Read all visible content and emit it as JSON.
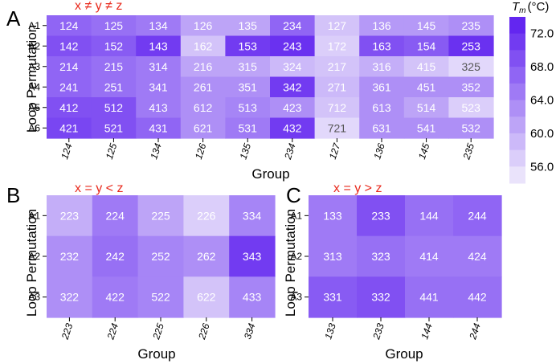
{
  "colorbar": {
    "title_symbol": "T",
    "title_subscript": "m",
    "title_unit": "(°C)",
    "ticks": [
      "72.0",
      "68.0",
      "64.0",
      "60.0",
      "56.0"
    ],
    "tick_values": [
      72,
      68,
      64,
      60,
      56
    ],
    "range": [
      54,
      74
    ],
    "dark_color": "#5b1cef",
    "light_color": "#f1edfc"
  },
  "chart_data": [
    {
      "panel": "A",
      "type": "heatmap",
      "title": "x ≠ y ≠ z",
      "xlabel": "Group",
      "ylabel": "Loop Permutation",
      "rows": [
        "A1",
        "A2",
        "A3",
        "A4",
        "A5",
        "A6"
      ],
      "columns": [
        "124",
        "125",
        "134",
        "126",
        "135",
        "234",
        "127",
        "136",
        "145",
        "235"
      ],
      "labels": [
        [
          "124",
          "125",
          "134",
          "126",
          "135",
          "234",
          "127",
          "136",
          "145",
          "235"
        ],
        [
          "142",
          "152",
          "143",
          "162",
          "153",
          "243",
          "172",
          "163",
          "154",
          "253"
        ],
        [
          "214",
          "215",
          "314",
          "216",
          "315",
          "324",
          "217",
          "316",
          "415",
          "325"
        ],
        [
          "241",
          "251",
          "341",
          "261",
          "351",
          "342",
          "271",
          "361",
          "451",
          "352"
        ],
        [
          "412",
          "512",
          "413",
          "612",
          "513",
          "423",
          "712",
          "613",
          "514",
          "523"
        ],
        [
          "421",
          "521",
          "431",
          "621",
          "531",
          "432",
          "721",
          "631",
          "541",
          "532"
        ]
      ],
      "values": [
        [
          67,
          66,
          65,
          61,
          61,
          67,
          58,
          62,
          62,
          63
        ],
        [
          69,
          68,
          71,
          58,
          71,
          72,
          57,
          69,
          68,
          72
        ],
        [
          67,
          66,
          65,
          61,
          61,
          59,
          58,
          60,
          58,
          56
        ],
        [
          67,
          66,
          65,
          63,
          63,
          71,
          59,
          63,
          63,
          63
        ],
        [
          69,
          69,
          65,
          63,
          64,
          63,
          58,
          63,
          61,
          57
        ],
        [
          70,
          69,
          67,
          63,
          65,
          71,
          56,
          63,
          63,
          63
        ]
      ]
    },
    {
      "panel": "B",
      "type": "heatmap",
      "title": "x = y < z",
      "xlabel": "Group",
      "ylabel": "Loop Permutation",
      "rows": [
        "A1",
        "A2",
        "A3"
      ],
      "columns": [
        "223",
        "224",
        "225",
        "226",
        "334"
      ],
      "labels": [
        [
          "223",
          "224",
          "225",
          "226",
          "334"
        ],
        [
          "232",
          "242",
          "252",
          "262",
          "343"
        ],
        [
          "322",
          "422",
          "522",
          "622",
          "433"
        ]
      ],
      "values": [
        [
          60,
          65,
          61,
          57,
          64
        ],
        [
          63,
          66,
          64,
          63,
          71
        ],
        [
          63,
          65,
          64,
          58,
          64
        ]
      ]
    },
    {
      "panel": "C",
      "type": "heatmap",
      "title": "x = y > z",
      "xlabel": "Group",
      "ylabel": "Loop Permutation",
      "rows": [
        "A1",
        "A2",
        "A3"
      ],
      "columns": [
        "133",
        "233",
        "144",
        "244"
      ],
      "labels": [
        [
          "133",
          "233",
          "144",
          "244"
        ],
        [
          "313",
          "323",
          "414",
          "424"
        ],
        [
          "331",
          "332",
          "441",
          "442"
        ]
      ],
      "values": [
        [
          65,
          69,
          66,
          67
        ],
        [
          65,
          66,
          65,
          65
        ],
        [
          68,
          69,
          66,
          66
        ]
      ]
    }
  ]
}
